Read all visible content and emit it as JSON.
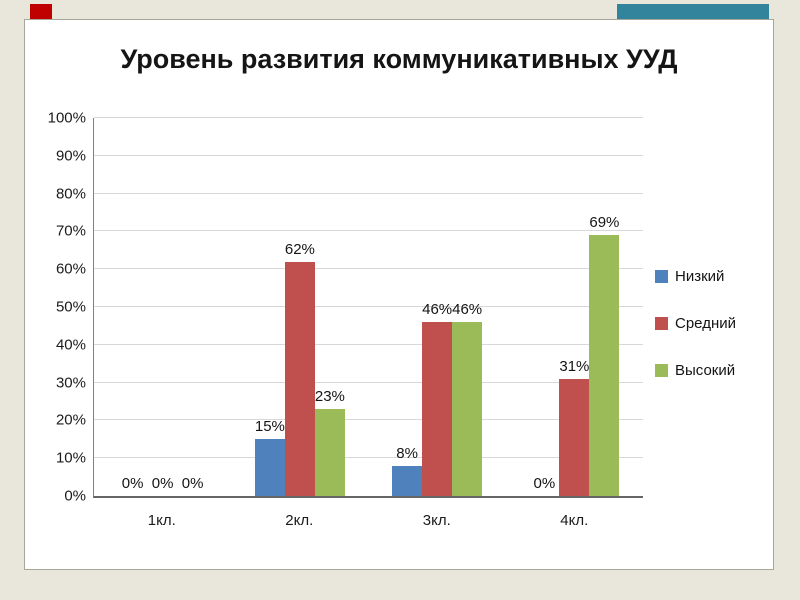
{
  "slide": {
    "background_color": "#e9e7db",
    "decoration_red_color": "#c00000",
    "decoration_teal_color": "#31849b"
  },
  "chart_data": {
    "type": "bar",
    "title": "Уровень развития коммуникативных УУД",
    "categories": [
      "1кл.",
      "2кл.",
      "3кл.",
      "4кл."
    ],
    "series": [
      {
        "name": "Низкий",
        "color": "#4f81bd",
        "values": [
          0,
          15,
          8,
          0
        ]
      },
      {
        "name": "Средний",
        "color": "#c0504d",
        "values": [
          0,
          62,
          46,
          31
        ]
      },
      {
        "name": "Высокий",
        "color": "#9bbb59",
        "values": [
          0,
          23,
          46,
          69
        ]
      }
    ],
    "value_suffix": "%",
    "y_ticks": [
      "100%",
      "90%",
      "80%",
      "70%",
      "60%",
      "50%",
      "40%",
      "30%",
      "20%",
      "10%",
      "0%"
    ],
    "ylim": [
      0,
      100
    ],
    "grid": true,
    "legend_position": "right",
    "legend": [
      "Низкий",
      "Средний",
      "Высокий"
    ]
  }
}
